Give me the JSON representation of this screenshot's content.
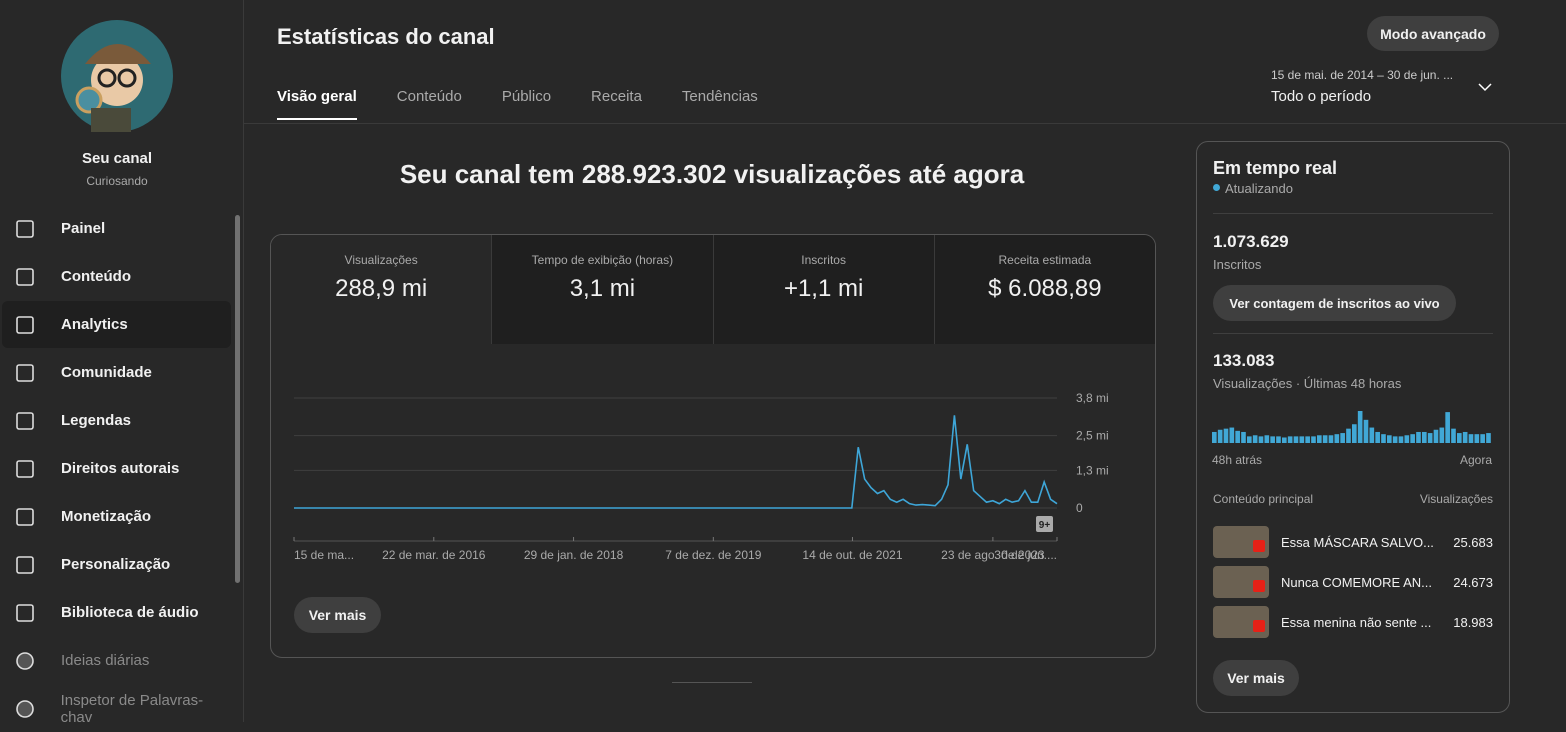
{
  "sidebar": {
    "channel_title": "Seu canal",
    "channel_name": "Curiosando",
    "nav": [
      "Painel",
      "Conteúdo",
      "Analytics",
      "Comunidade",
      "Legendas",
      "Direitos autorais",
      "Monetização",
      "Personalização",
      "Biblioteca de áudio",
      "Ideias diárias",
      "Inspetor de Palavras-chav"
    ]
  },
  "header": {
    "title": "Estatísticas do canal",
    "tabs": [
      "Visão geral",
      "Conteúdo",
      "Público",
      "Receita",
      "Tendências"
    ],
    "button": "Modo avançado",
    "date_range": "15 de mai. de 2014 – 30 de jun. ...",
    "period": "Todo o período"
  },
  "headline": "Seu canal tem 288.923.302 visualizações até agora",
  "stats": [
    {
      "label": "Visualizações",
      "value": "288,9 mi"
    },
    {
      "label": "Tempo de exibição (horas)",
      "value": "3,1 mi"
    },
    {
      "label": "Inscritos",
      "value": "+1,1 mi"
    },
    {
      "label": "Receita estimada",
      "value": "$ 6.088,89"
    }
  ],
  "chart_button": "Ver mais",
  "chart_data": [
    {
      "type": "line",
      "color": "#3ea6d8",
      "badge": "9+",
      "values": [
        0,
        0,
        0,
        0,
        0,
        0,
        0,
        0,
        0,
        0,
        0,
        0,
        0,
        0,
        0,
        0,
        0,
        0,
        0,
        0,
        0,
        0,
        0,
        0,
        0,
        0,
        0,
        0,
        0,
        0,
        0,
        0,
        0,
        0,
        0,
        0,
        0,
        0,
        0,
        0,
        0,
        0,
        0,
        0,
        0,
        0,
        0,
        0,
        0,
        0,
        0,
        0,
        0,
        0,
        0,
        0,
        0,
        0,
        0,
        0,
        0,
        0,
        0,
        0,
        0,
        0,
        0,
        0,
        0,
        0,
        0,
        0,
        0,
        0,
        0,
        0,
        0,
        0,
        0,
        0,
        0,
        0,
        0,
        0,
        0,
        0,
        0,
        0,
        2.1,
        1.0,
        0.7,
        0.5,
        0.6,
        0.3,
        0.2,
        0.3,
        0.15,
        0.1,
        0.12,
        0.1,
        0.08,
        0.3,
        0.8,
        3.2,
        1.0,
        2.2,
        0.6,
        0.4,
        0.2,
        0.25,
        0.15,
        0.3,
        0.2,
        0.25,
        0.6,
        0.2,
        0.2,
        0.9,
        0.3,
        0.15
      ],
      "xlim": [
        0,
        119
      ],
      "xticks": [
        {
          "value": 0,
          "label": "15 de ma..."
        },
        {
          "value": 21.8,
          "label": "22 de mar. de 2016"
        },
        {
          "value": 43.6,
          "label": "29 de jan. de 2018"
        },
        {
          "value": 65.4,
          "label": "7 de dez. de 2019"
        },
        {
          "value": 87.1,
          "label": "14 de out. de 2021"
        },
        {
          "value": 109,
          "label": "23 de ago. de 2023"
        },
        {
          "value": 119,
          "label": "30 de jun...."
        }
      ],
      "ylim": [
        0,
        3.8
      ],
      "yticks": [
        {
          "value": 0,
          "label": "0"
        },
        {
          "value": 1.3,
          "label": "1,3 mi"
        },
        {
          "value": 2.5,
          "label": "2,5 mi"
        },
        {
          "value": 3.8,
          "label": "3,8 mi"
        }
      ]
    },
    {
      "type": "bar",
      "color": "#41a8d6",
      "categories": [
        "48h atrás",
        null,
        null,
        null,
        null,
        null,
        null,
        null,
        null,
        null,
        null,
        null,
        null,
        null,
        null,
        null,
        null,
        null,
        null,
        null,
        null,
        null,
        null,
        null,
        null,
        null,
        null,
        null,
        null,
        null,
        null,
        null,
        null,
        null,
        null,
        null,
        null,
        null,
        null,
        null,
        null,
        null,
        null,
        null,
        null,
        null,
        null,
        "Agora"
      ],
      "values": [
        3000,
        3600,
        3900,
        4200,
        3300,
        3000,
        1800,
        2100,
        1800,
        2100,
        1800,
        1800,
        1500,
        1800,
        1800,
        1800,
        1800,
        1800,
        2100,
        2100,
        2100,
        2400,
        2700,
        3900,
        5100,
        8700,
        6300,
        4200,
        3000,
        2400,
        2100,
        1800,
        1800,
        2100,
        2400,
        3000,
        3000,
        2700,
        3600,
        4200,
        8400,
        3900,
        2700,
        3000,
        2400,
        2400,
        2400,
        2700
      ]
    }
  ],
  "realtime": {
    "title": "Em tempo real",
    "status": "Atualizando",
    "subscribers": "1.073.629",
    "subscribers_label": "Inscritos",
    "button": "Ver contagem de inscritos ao vivo",
    "views": "133.083",
    "views_label": "Visualizações · Últimas 48 horas",
    "top_header": [
      "Conteúdo principal",
      "Visualizações"
    ],
    "top_rows": [
      {
        "title": "Essa MÁSCARA SALVO...",
        "views": "25.683"
      },
      {
        "title": "Nunca COMEMORE AN...",
        "views": "24.673"
      },
      {
        "title": "Essa menina não sente ...",
        "views": "18.983"
      }
    ],
    "more": "Ver mais"
  }
}
